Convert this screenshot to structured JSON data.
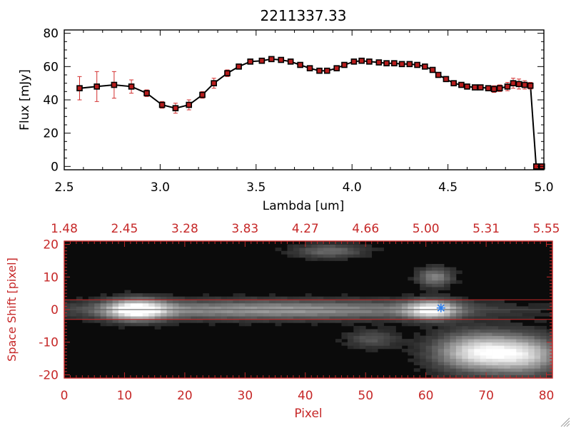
{
  "colors": {
    "axis_black": "#000000",
    "axis_red": "#c62828",
    "errorbar": "#d32f2f",
    "marker": "#000000",
    "marker_fill": "#b71c1c",
    "star": "#2f80ed",
    "image_bg": "#0b0b0b"
  },
  "chart_data": [
    {
      "type": "line",
      "title": "2211337.33",
      "xlabel": "Lambda [um]",
      "ylabel": "Flux [mJy]",
      "xlim": [
        2.5,
        5.0
      ],
      "ylim": [
        -2,
        82
      ],
      "xticks": [
        2.5,
        3.0,
        3.5,
        4.0,
        4.5,
        5.0
      ],
      "xtick_labels": [
        "2.5",
        "3.0",
        "3.5",
        "4.0",
        "4.5",
        "5.0"
      ],
      "yticks": [
        0,
        20,
        40,
        60,
        80
      ],
      "ytick_labels": [
        "0",
        "20",
        "40",
        "60",
        "80"
      ],
      "series": [
        {
          "name": "flux",
          "x": [
            2.58,
            2.67,
            2.76,
            2.85,
            2.93,
            3.01,
            3.08,
            3.15,
            3.22,
            3.28,
            3.35,
            3.41,
            3.47,
            3.53,
            3.58,
            3.63,
            3.68,
            3.73,
            3.78,
            3.83,
            3.87,
            3.92,
            3.96,
            4.01,
            4.05,
            4.09,
            4.14,
            4.18,
            4.22,
            4.26,
            4.3,
            4.34,
            4.38,
            4.42,
            4.45,
            4.49,
            4.53,
            4.57,
            4.6,
            4.64,
            4.67,
            4.71,
            4.74,
            4.77,
            4.81,
            4.84,
            4.87,
            4.9,
            4.93,
            4.96,
            4.99
          ],
          "y": [
            47,
            48,
            49,
            48,
            44,
            37,
            35,
            37,
            43,
            50,
            56,
            60,
            63,
            63.5,
            64.5,
            64,
            63,
            61,
            59,
            57.5,
            57.5,
            59,
            61,
            63,
            63.5,
            63,
            62.5,
            62,
            62,
            61.5,
            61.5,
            61,
            60,
            58,
            55,
            52.5,
            50,
            49,
            48,
            47.5,
            47.5,
            47,
            46.5,
            47,
            48,
            50,
            49.5,
            49,
            48.5,
            0,
            0
          ],
          "yerr": [
            7,
            9,
            8,
            4,
            2,
            2,
            3,
            3,
            2,
            3,
            2,
            1.5,
            1.5,
            1,
            1,
            1,
            1,
            1,
            1,
            1,
            1,
            1,
            1,
            1,
            1,
            1,
            1,
            1,
            1,
            1,
            1,
            1,
            1,
            1,
            1,
            1,
            1,
            1,
            1,
            1,
            1,
            1.5,
            2,
            2,
            2.5,
            3,
            3,
            2.5,
            2,
            0.5,
            0.5
          ]
        }
      ]
    },
    {
      "type": "heatmap",
      "xlabel": "Pixel",
      "ylabel": "Space Shift [pixel]",
      "xlim": [
        0,
        81
      ],
      "ylim": [
        -21,
        21
      ],
      "xticks": [
        0,
        10,
        20,
        30,
        40,
        50,
        60,
        70,
        80
      ],
      "xtick_labels": [
        "0",
        "10",
        "20",
        "30",
        "40",
        "50",
        "60",
        "70",
        "80"
      ],
      "yticks": [
        -20,
        -10,
        0,
        10,
        20
      ],
      "ytick_labels": [
        "-20",
        "-10",
        "0",
        "10",
        "20"
      ],
      "top_axis_labels": [
        "1.48",
        "2.45",
        "3.28",
        "3.83",
        "4.27",
        "4.66",
        "5.00",
        "5.31",
        "5.55"
      ],
      "aperture_lines_y": [
        3,
        -3
      ],
      "marker": {
        "type": "star",
        "x": 62.5,
        "y": 0.5
      },
      "sources": [
        {
          "x": 12,
          "y": 0,
          "intensity": 0.95,
          "sx": 3.5,
          "sy": 2.2
        },
        {
          "x": 35,
          "y": 0,
          "intensity": 0.55,
          "sx": 22,
          "sy": 2.0
        },
        {
          "x": 61,
          "y": 0,
          "intensity": 0.8,
          "sx": 3.0,
          "sy": 2.0
        },
        {
          "x": 61.5,
          "y": 10,
          "intensity": 0.45,
          "sx": 2.0,
          "sy": 2.0
        },
        {
          "x": 44,
          "y": 18,
          "intensity": 0.35,
          "sx": 4.0,
          "sy": 1.5
        },
        {
          "x": 51,
          "y": -9,
          "intensity": 0.25,
          "sx": 3.0,
          "sy": 2.0
        },
        {
          "x": 69,
          "y": -13,
          "intensity": 0.9,
          "sx": 5.0,
          "sy": 4.0
        },
        {
          "x": 77,
          "y": -14,
          "intensity": 0.6,
          "sx": 4.0,
          "sy": 4.0
        }
      ]
    }
  ]
}
